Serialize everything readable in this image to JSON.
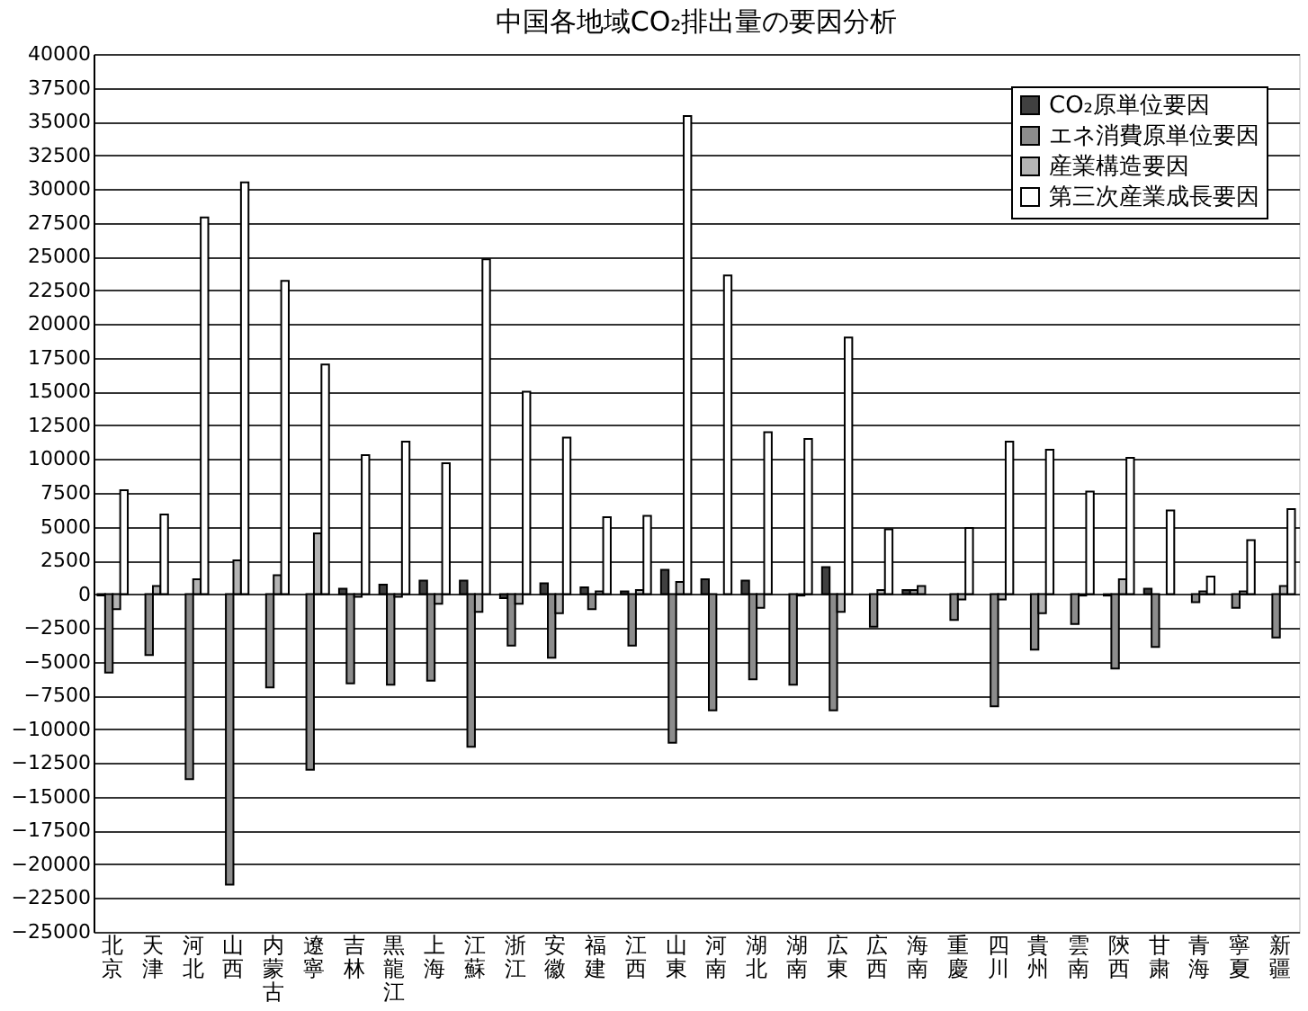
{
  "chart_data": {
    "type": "bar",
    "title": "中国各地域CO₂排出量の要因分析",
    "categories": [
      "北京",
      "天津",
      "河北",
      "山西",
      "内蒙古",
      "遼寧",
      "吉林",
      "黒龍江",
      "上海",
      "江蘇",
      "浙江",
      "安徽",
      "福建",
      "江西",
      "山東",
      "河南",
      "湖北",
      "湖南",
      "広東",
      "広西",
      "海南",
      "重慶",
      "四川",
      "貴州",
      "雲南",
      "陝西",
      "甘粛",
      "青海",
      "寧夏",
      "新疆"
    ],
    "series": [
      {
        "name": "CO₂原単位要因",
        "color": "#404040",
        "values": [
          -100,
          null,
          null,
          null,
          null,
          null,
          400,
          700,
          1000,
          1000,
          -300,
          800,
          500,
          200,
          1800,
          1100,
          1000,
          null,
          2000,
          null,
          300,
          null,
          null,
          null,
          null,
          -100,
          400,
          null,
          null,
          null
        ]
      },
      {
        "name": "エネ消費原単位要因",
        "color": "#8c8c8c",
        "values": [
          -5800,
          -4500,
          -13700,
          -21500,
          -6900,
          -13000,
          -6600,
          -6700,
          -6400,
          -11300,
          -3800,
          -4700,
          -1100,
          -3800,
          -11000,
          -8600,
          -6300,
          -6700,
          -8600,
          -2400,
          300,
          -1900,
          -8300,
          -4100,
          -2200,
          -5500,
          -3900,
          -600,
          -1000,
          -3200
        ]
      },
      {
        "name": "産業構造要因",
        "color": "#b4b4b4",
        "values": [
          -1100,
          600,
          1100,
          2500,
          1400,
          4500,
          -200,
          -200,
          -700,
          -1300,
          -700,
          -1400,
          200,
          300,
          900,
          null,
          -1000,
          -100,
          -1300,
          300,
          600,
          -400,
          -400,
          -1400,
          -100,
          1100,
          null,
          200,
          200,
          600
        ]
      },
      {
        "name": "第三次産業成長要因",
        "color": "#ffffff",
        "values": [
          7700,
          5900,
          27900,
          30500,
          23200,
          17000,
          10300,
          11300,
          9700,
          24800,
          15000,
          11600,
          5700,
          5800,
          35400,
          23600,
          12000,
          11500,
          19000,
          4800,
          null,
          4900,
          11300,
          10700,
          7600,
          10100,
          6200,
          1300,
          4000,
          6300
        ]
      }
    ],
    "ylim": [
      -25000,
      40000
    ],
    "yticks": [
      -25000,
      -22500,
      -20000,
      -17500,
      -15000,
      -12500,
      -10000,
      -7500,
      -5000,
      -2500,
      0,
      2500,
      5000,
      7500,
      10000,
      12500,
      15000,
      17500,
      20000,
      22500,
      25000,
      27500,
      30000,
      32500,
      35000,
      37500,
      40000
    ],
    "grid": "y",
    "legend": "top right"
  }
}
